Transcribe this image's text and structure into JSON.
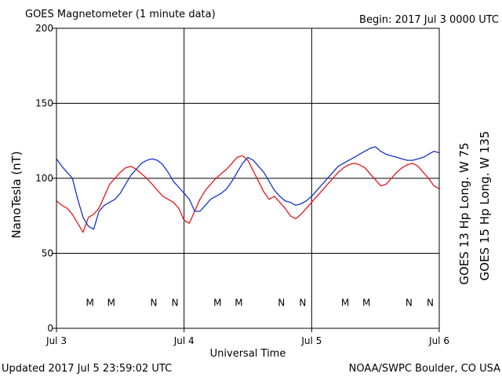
{
  "header": {
    "title": "GOES Magnetometer (1 minute data)",
    "begin": "Begin:  2017 Jul 3 0000 UTC"
  },
  "footer": {
    "updated": "Updated 2017 Jul  5 23:59:02 UTC",
    "credit": "NOAA/SWPC Boulder, CO USA"
  },
  "chart_data": {
    "type": "line",
    "xlabel": "Universal Time",
    "ylabel": "NanoTesla (nT)",
    "xlim": [
      0,
      72
    ],
    "ylim": [
      0,
      200
    ],
    "x_unit": "hours since 2017 Jul 3 0000 UTC",
    "xticks": [
      {
        "value": 0,
        "label": "Jul 3"
      },
      {
        "value": 24,
        "label": "Jul 4"
      },
      {
        "value": 48,
        "label": "Jul 5"
      },
      {
        "value": 72,
        "label": "Jul 6"
      }
    ],
    "yticks": [
      0,
      50,
      100,
      150,
      200
    ],
    "grid": true,
    "series": [
      {
        "name": "GOES 13 Hp  Long. W 75",
        "color": "#e8141c",
        "x": [
          0,
          1,
          2,
          3,
          4,
          5,
          6,
          7,
          8,
          9,
          10,
          11,
          12,
          13,
          14,
          15,
          16,
          17,
          18,
          19,
          20,
          21,
          22,
          23,
          24,
          25,
          26,
          27,
          28,
          29,
          30,
          31,
          32,
          33,
          34,
          35,
          36,
          37,
          38,
          39,
          40,
          41,
          42,
          43,
          44,
          45,
          46,
          47,
          48,
          49,
          50,
          51,
          52,
          53,
          54,
          55,
          56,
          57,
          58,
          59,
          60,
          61,
          62,
          63,
          64,
          65,
          66,
          67,
          68,
          69,
          70,
          71,
          72
        ],
        "values": [
          85,
          82,
          80,
          76,
          70,
          64,
          74,
          76,
          80,
          88,
          96,
          100,
          104,
          107,
          108,
          106,
          103,
          100,
          96,
          92,
          88,
          86,
          84,
          80,
          72,
          70,
          78,
          86,
          92,
          96,
          100,
          103,
          106,
          110,
          114,
          115,
          112,
          105,
          98,
          91,
          86,
          88,
          84,
          80,
          75,
          73,
          76,
          80,
          84,
          88,
          92,
          96,
          100,
          104,
          107,
          109,
          110,
          109,
          107,
          103,
          99,
          95,
          96,
          100,
          104,
          107,
          109,
          110,
          108,
          104,
          100,
          95,
          93
        ]
      },
      {
        "name": "GOES 15 Hp  Long. W 135",
        "color": "#1432c8",
        "x": [
          0,
          1,
          2,
          3,
          4,
          5,
          6,
          7,
          8,
          9,
          10,
          11,
          12,
          13,
          14,
          15,
          16,
          17,
          18,
          19,
          20,
          21,
          22,
          23,
          24,
          25,
          26,
          27,
          28,
          29,
          30,
          31,
          32,
          33,
          34,
          35,
          36,
          37,
          38,
          39,
          40,
          41,
          42,
          43,
          44,
          45,
          46,
          47,
          48,
          49,
          50,
          51,
          52,
          53,
          54,
          55,
          56,
          57,
          58,
          59,
          60,
          61,
          62,
          63,
          64,
          65,
          66,
          67,
          68,
          69,
          70,
          71,
          72
        ],
        "values": [
          113,
          108,
          104,
          100,
          86,
          74,
          68,
          66,
          78,
          82,
          84,
          86,
          90,
          96,
          102,
          106,
          110,
          112,
          113,
          112,
          109,
          104,
          98,
          94,
          90,
          86,
          78,
          78,
          82,
          86,
          88,
          90,
          93,
          98,
          104,
          110,
          114,
          112,
          108,
          104,
          98,
          92,
          88,
          85,
          84,
          82,
          83,
          85,
          88,
          92,
          96,
          100,
          104,
          108,
          110,
          112,
          114,
          116,
          118,
          120,
          121,
          118,
          116,
          115,
          114,
          113,
          112,
          112,
          113,
          114,
          116,
          118,
          117
        ]
      }
    ],
    "markers": [
      {
        "label": "M",
        "x": 6.3,
        "series": 0
      },
      {
        "label": "M",
        "x": 10.3,
        "series": 1
      },
      {
        "label": "N",
        "x": 18.3,
        "series": 0
      },
      {
        "label": "N",
        "x": 22.3,
        "series": 1
      },
      {
        "label": "M",
        "x": 30.3,
        "series": 0
      },
      {
        "label": "M",
        "x": 34.3,
        "series": 1
      },
      {
        "label": "N",
        "x": 42.3,
        "series": 0
      },
      {
        "label": "N",
        "x": 46.3,
        "series": 1
      },
      {
        "label": "M",
        "x": 54.3,
        "series": 0
      },
      {
        "label": "M",
        "x": 58.3,
        "series": 1
      },
      {
        "label": "N",
        "x": 66.3,
        "series": 0
      },
      {
        "label": "N",
        "x": 70.3,
        "series": 1
      }
    ],
    "marker_y": 17
  }
}
